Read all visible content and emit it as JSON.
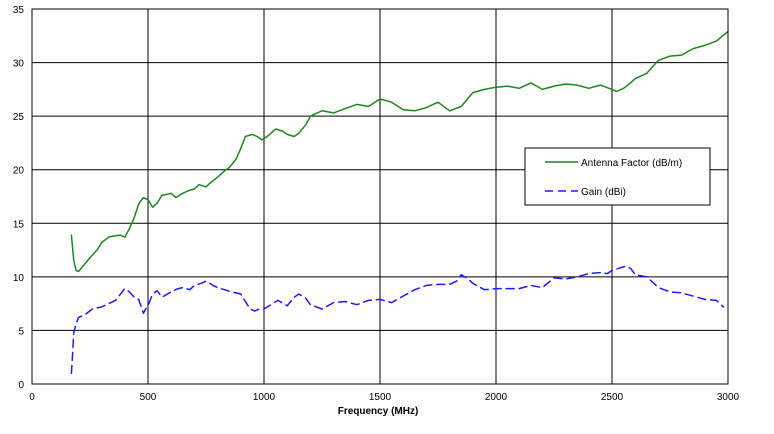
{
  "chart_data": {
    "type": "line",
    "title": "",
    "xlabel": "Frequency (MHz)",
    "ylabel": "",
    "xlim": [
      0,
      3000
    ],
    "ylim": [
      0,
      35
    ],
    "x_ticks": [
      "0",
      "500",
      "1000",
      "1500",
      "2000",
      "2500",
      "3000"
    ],
    "y_ticks": [
      "0",
      "5",
      "10",
      "15",
      "20",
      "25",
      "30",
      "35"
    ],
    "grid": true,
    "legend_position": "right",
    "series": [
      {
        "name": "Antenna Factor (dB/m)",
        "color": "#1a8a1a",
        "style": "solid",
        "x": [
          170,
          180,
          190,
          200,
          220,
          250,
          280,
          300,
          330,
          350,
          380,
          400,
          420,
          440,
          460,
          480,
          500,
          520,
          540,
          560,
          580,
          600,
          620,
          650,
          680,
          700,
          720,
          750,
          770,
          800,
          830,
          850,
          880,
          900,
          920,
          950,
          970,
          990,
          1000,
          1020,
          1050,
          1080,
          1100,
          1130,
          1150,
          1180,
          1200,
          1250,
          1300,
          1350,
          1400,
          1450,
          1500,
          1550,
          1600,
          1650,
          1700,
          1750,
          1800,
          1850,
          1900,
          1950,
          2000,
          2050,
          2100,
          2150,
          2200,
          2250,
          2300,
          2350,
          2400,
          2450,
          2500,
          2520,
          2550,
          2580,
          2600,
          2650,
          2700,
          2750,
          2800,
          2850,
          2900,
          2950,
          3000
        ],
        "y": [
          13.9,
          11.5,
          10.6,
          10.5,
          11.0,
          11.8,
          12.5,
          13.2,
          13.7,
          13.8,
          13.9,
          13.7,
          14.5,
          15.5,
          16.8,
          17.4,
          17.2,
          16.5,
          16.9,
          17.6,
          17.7,
          17.8,
          17.4,
          17.8,
          18.1,
          18.2,
          18.6,
          18.4,
          18.8,
          19.3,
          19.9,
          20.2,
          21.0,
          22.0,
          23.1,
          23.3,
          23.1,
          22.8,
          22.9,
          23.2,
          23.8,
          23.6,
          23.3,
          23.1,
          23.4,
          24.2,
          25.0,
          25.5,
          25.3,
          25.7,
          26.1,
          25.9,
          26.6,
          26.3,
          25.6,
          25.5,
          25.8,
          26.3,
          25.5,
          25.9,
          27.2,
          27.5,
          27.7,
          27.8,
          27.6,
          28.1,
          27.5,
          27.8,
          28.0,
          27.9,
          27.6,
          27.9,
          27.5,
          27.3,
          27.6,
          28.1,
          28.5,
          29.0,
          30.2,
          30.6,
          30.7,
          31.3,
          31.6,
          32.0,
          32.9
        ]
      },
      {
        "name": "Gain (dBi)",
        "color": "#1a1aff",
        "style": "dashed",
        "x": [
          170,
          175,
          180,
          190,
          200,
          230,
          260,
          300,
          330,
          360,
          400,
          420,
          440,
          460,
          480,
          490,
          500,
          520,
          540,
          560,
          600,
          630,
          650,
          680,
          700,
          730,
          750,
          780,
          800,
          830,
          860,
          900,
          920,
          940,
          960,
          980,
          1000,
          1030,
          1060,
          1100,
          1130,
          1150,
          1180,
          1200,
          1250,
          1300,
          1350,
          1400,
          1450,
          1500,
          1550,
          1600,
          1650,
          1700,
          1750,
          1800,
          1830,
          1850,
          1880,
          1900,
          1950,
          2000,
          2050,
          2100,
          2150,
          2200,
          2250,
          2300,
          2350,
          2400,
          2450,
          2480,
          2500,
          2530,
          2560,
          2580,
          2600,
          2650,
          2700,
          2750,
          2800,
          2850,
          2900,
          2950,
          2980
        ],
        "y": [
          1.0,
          2.8,
          4.8,
          5.6,
          6.2,
          6.5,
          7.0,
          7.2,
          7.5,
          7.8,
          8.9,
          8.6,
          8.1,
          7.9,
          6.6,
          7.0,
          7.3,
          8.4,
          8.7,
          8.1,
          8.6,
          8.9,
          9.0,
          8.8,
          9.2,
          9.4,
          9.6,
          9.2,
          9.0,
          8.8,
          8.6,
          8.4,
          7.7,
          7.0,
          6.8,
          7.0,
          7.0,
          7.4,
          7.8,
          7.3,
          8.1,
          8.4,
          8.0,
          7.4,
          7.0,
          7.6,
          7.7,
          7.4,
          7.8,
          7.9,
          7.6,
          8.2,
          8.8,
          9.2,
          9.3,
          9.3,
          9.6,
          10.2,
          9.8,
          9.4,
          8.8,
          8.9,
          8.9,
          8.9,
          9.2,
          9.0,
          9.9,
          9.8,
          10.0,
          10.3,
          10.4,
          10.3,
          10.6,
          10.8,
          11.0,
          10.8,
          10.2,
          10.0,
          9.0,
          8.6,
          8.5,
          8.2,
          7.9,
          7.8,
          7.2
        ]
      }
    ]
  }
}
